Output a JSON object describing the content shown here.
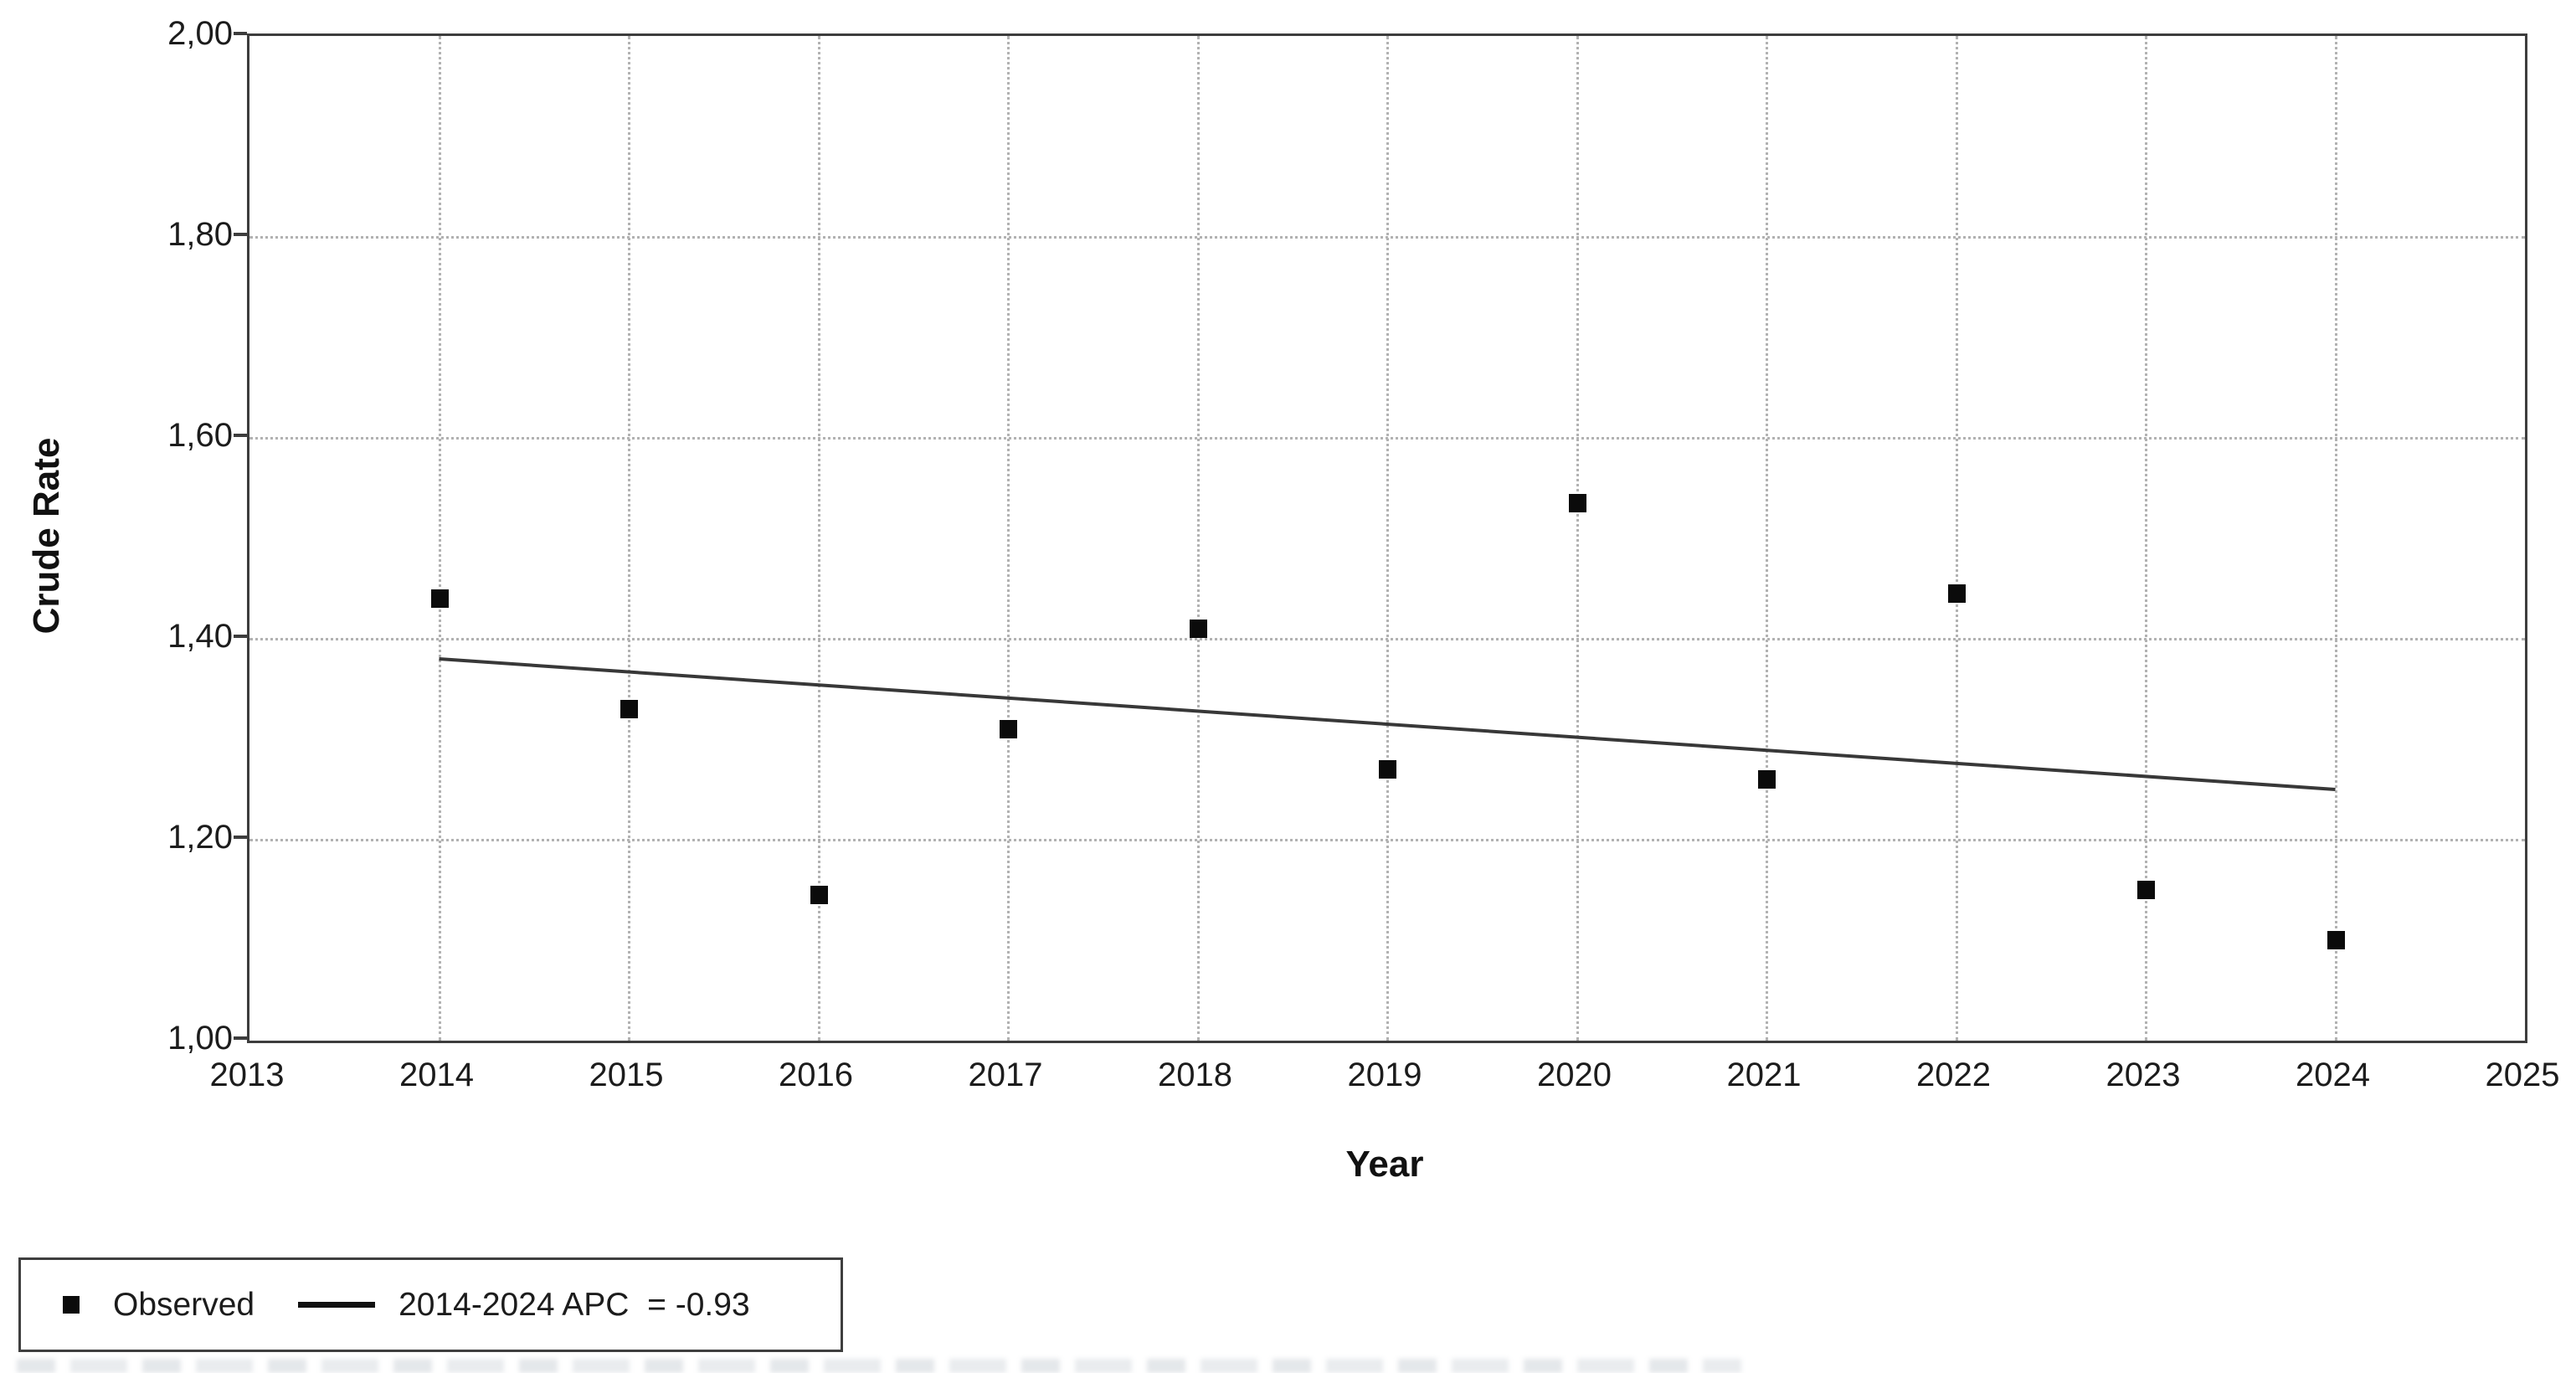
{
  "chart_data": {
    "type": "scatter",
    "title": "",
    "xlabel": "Year",
    "ylabel": "Crude Rate",
    "xlim": [
      2013,
      2025
    ],
    "ylim": [
      1.0,
      2.0
    ],
    "grid": "dotted, both axes",
    "x_ticks": [
      2013,
      2014,
      2015,
      2016,
      2017,
      2018,
      2019,
      2020,
      2021,
      2022,
      2023,
      2024,
      2025
    ],
    "x_gridlines": [
      2014,
      2015,
      2016,
      2017,
      2018,
      2019,
      2020,
      2021,
      2022,
      2023,
      2024
    ],
    "y_ticks": {
      "values": [
        2.0,
        1.8,
        1.6,
        1.4,
        1.2,
        1.0
      ],
      "labels": [
        "2,00",
        "1,80",
        "1,60",
        "1,40",
        "1,20",
        "1,00"
      ]
    },
    "y_gridlines": [
      1.8,
      1.6,
      1.4,
      1.2
    ],
    "series": [
      {
        "name": "Observed",
        "type": "scatter",
        "marker": "black-square",
        "x": [
          2014,
          2015,
          2016,
          2017,
          2018,
          2019,
          2020,
          2021,
          2022,
          2023,
          2024
        ],
        "y": [
          1.44,
          1.33,
          1.145,
          1.31,
          1.41,
          1.27,
          1.535,
          1.26,
          1.445,
          1.15,
          1.1
        ]
      },
      {
        "name": "2014-2024 APC = -0.93",
        "type": "line",
        "x": [
          2014,
          2024
        ],
        "y": [
          1.38,
          1.25
        ]
      }
    ],
    "legend": {
      "position": "bottom-left",
      "entries": [
        {
          "marker": "square",
          "label": "Observed"
        },
        {
          "marker": "line",
          "label": "2014-2024 APC  = -0.93"
        }
      ]
    }
  },
  "colors": {
    "background": "#ffffff",
    "axis_frame": "#3d3d3d",
    "gridline": "#b2b2b2",
    "marker": "#0b0b0b",
    "trend_line": "#383838",
    "text": "#1c1c1c"
  }
}
